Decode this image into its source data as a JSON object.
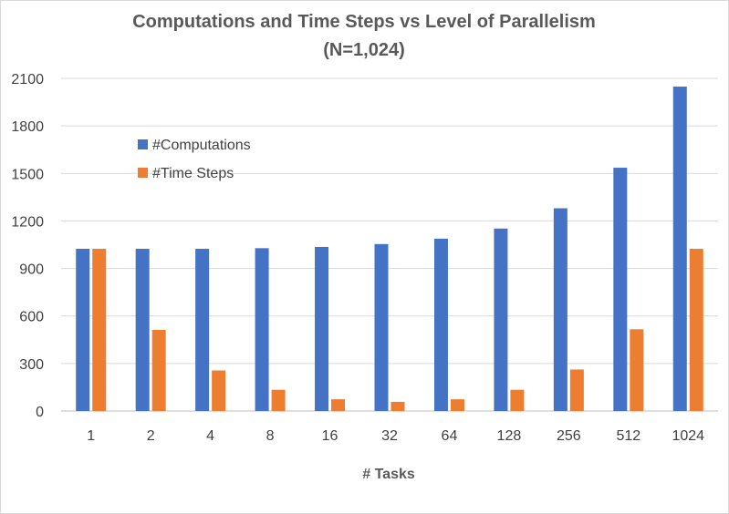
{
  "chart_data": {
    "type": "bar",
    "title": [
      "Computations and Time Steps vs Level of Parallelism",
      "(N=1,024)"
    ],
    "xlabel": "# Tasks",
    "ylabel": "",
    "categories": [
      "1",
      "2",
      "4",
      "8",
      "16",
      "32",
      "64",
      "128",
      "256",
      "512",
      "1024"
    ],
    "series": [
      {
        "name": "#Computations",
        "color": "#4472C4",
        "values": [
          1024,
          1024,
          1024,
          1028,
          1036,
          1054,
          1088,
          1152,
          1280,
          1536,
          2048
        ]
      },
      {
        "name": "#Time Steps",
        "color": "#ED7D31",
        "values": [
          1024,
          512,
          256,
          134,
          74,
          58,
          74,
          134,
          262,
          516,
          1024
        ]
      }
    ],
    "ylim": [
      0,
      2100
    ],
    "yticks": [
      0,
      300,
      600,
      900,
      1200,
      1500,
      1800,
      2100
    ],
    "grid": true,
    "legend_position": "top-left, inside plot"
  }
}
